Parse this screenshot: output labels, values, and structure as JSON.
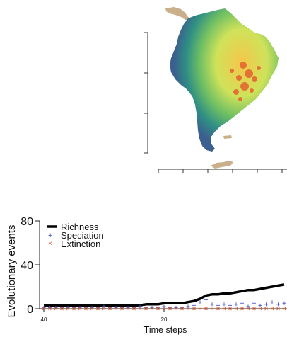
{
  "map": {
    "colors": {
      "low": "#3b5f8e",
      "mid_low": "#2f8f84",
      "mid": "#6fbf63",
      "mid_high": "#cfe25a",
      "high": "#f5c64a",
      "hotspot": "#e2622f",
      "land_outside": "#c9b08a"
    }
  },
  "chart_data": {
    "type": "line",
    "title": "",
    "xlabel": "Time steps",
    "ylabel": "Evolutionary events",
    "x_ticks": [
      40,
      20
    ],
    "y_ticks": [
      0,
      40,
      80
    ],
    "xlim": [
      40,
      0
    ],
    "ylim": [
      0,
      80
    ],
    "legend_position": "top-left",
    "x": [
      40,
      39,
      38,
      37,
      36,
      35,
      34,
      33,
      32,
      31,
      30,
      29,
      28,
      27,
      26,
      25,
      24,
      23,
      22,
      21,
      20,
      19,
      18,
      17,
      16,
      15,
      14,
      13,
      12,
      11,
      10,
      9,
      8,
      7,
      6,
      5,
      4,
      3,
      2,
      1,
      0
    ],
    "series": [
      {
        "name": "Richness",
        "style": "line",
        "color": "#000000",
        "values": [
          3,
          3,
          3,
          3,
          3,
          3,
          3,
          3,
          3,
          3,
          3,
          3,
          3,
          3,
          3,
          3,
          3,
          4,
          4,
          4,
          5,
          5,
          5,
          5,
          6,
          7,
          9,
          12,
          13,
          13,
          14,
          14,
          15,
          16,
          17,
          17,
          18,
          19,
          20,
          21,
          22
        ]
      },
      {
        "name": "Speciation",
        "style": "plus",
        "color": "#4a56c9",
        "values": [
          1,
          1,
          1,
          1,
          1,
          1,
          1,
          1,
          1,
          1,
          2,
          1,
          1,
          1,
          1,
          1,
          2,
          1,
          1,
          1,
          2,
          1,
          1,
          1,
          2,
          3,
          6,
          8,
          4,
          3,
          4,
          3,
          4,
          5,
          2,
          5,
          3,
          4,
          6,
          4,
          5
        ]
      },
      {
        "name": "Extinction",
        "style": "cross",
        "color": "#e0623a",
        "values": [
          0,
          0,
          0,
          0,
          0,
          0,
          0,
          0,
          0,
          0,
          0,
          0,
          0,
          0,
          0,
          0,
          0,
          0,
          0,
          0,
          0,
          0,
          0,
          0,
          0,
          0,
          0,
          0,
          0,
          0,
          0,
          0,
          0,
          0,
          0,
          0,
          0,
          0,
          0,
          0,
          0
        ]
      }
    ]
  }
}
